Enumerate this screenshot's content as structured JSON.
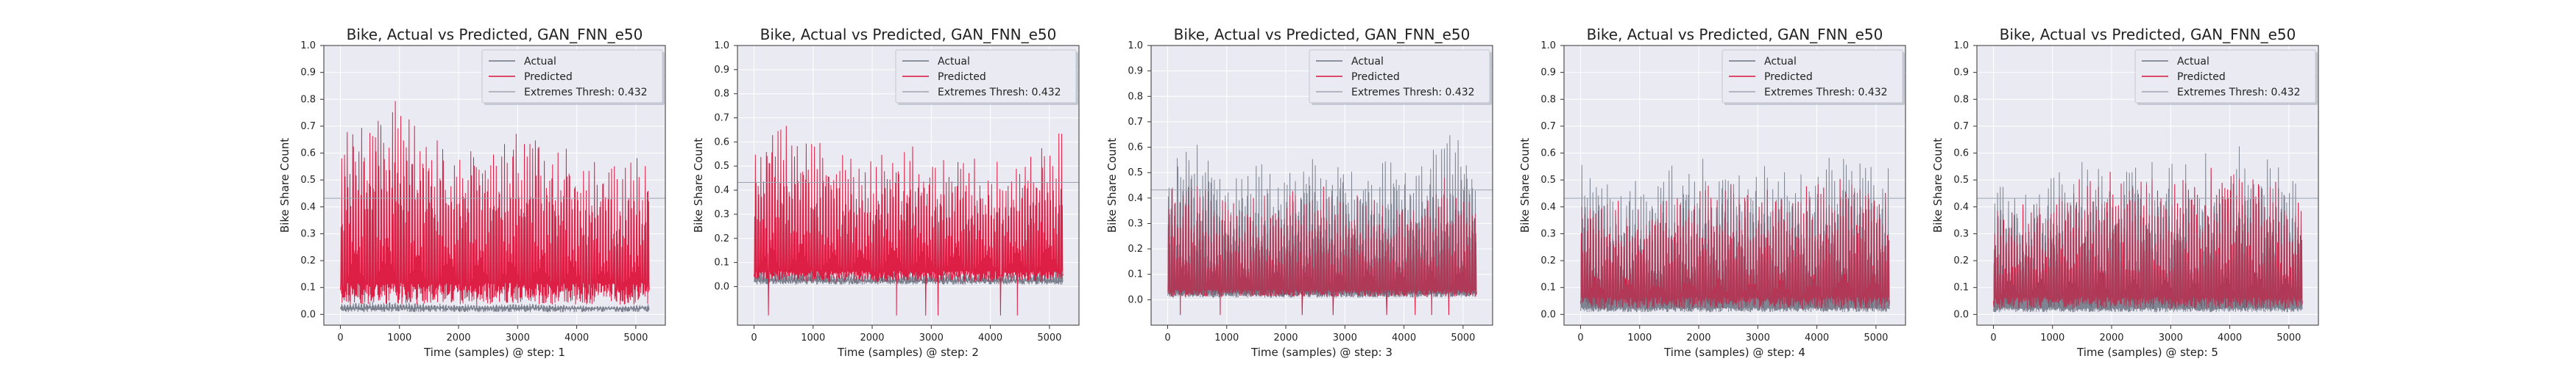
{
  "colors": {
    "background": "#ffffff",
    "axes_face": "#eaeaf2",
    "grid": "#ffffff",
    "actual": "#6b7280",
    "predicted": "#dc143c",
    "threshold": "#9ca3af",
    "text": "#222222"
  },
  "chart_data": [
    {
      "type": "line",
      "title": "Bike, Actual vs Predicted, GAN_FNN_e50",
      "xlabel": "Time (samples) @ step: 1",
      "ylabel": "Bike Share Count",
      "xlim": [
        -280,
        5500
      ],
      "ylim": [
        -0.04,
        1.0
      ],
      "xticks": [
        0,
        1000,
        2000,
        3000,
        4000,
        5000
      ],
      "yticks": [
        0.0,
        0.1,
        0.2,
        0.3,
        0.4,
        0.5,
        0.6,
        0.7,
        0.8,
        0.9,
        1.0
      ],
      "grid": true,
      "legend_position": "top-right",
      "threshold": 0.432,
      "series": [
        {
          "name": "Actual",
          "n_points": 5230,
          "baseline": 0.02,
          "peak_envelope": [
            0.03,
            0.05
          ]
        },
        {
          "name": "Predicted",
          "n_points": 5230,
          "baseline": 0.09,
          "peak_envelope": [
            0.55,
            0.84
          ]
        },
        {
          "name": "Extremes Thresh: 0.432",
          "value": 0.432
        }
      ]
    },
    {
      "type": "line",
      "title": "Bike, Actual vs Predicted, GAN_FNN_e50",
      "xlabel": "Time (samples) @ step: 2",
      "ylabel": "Bike Share Count",
      "xlim": [
        -280,
        5500
      ],
      "ylim": [
        -0.16,
        1.0
      ],
      "xticks": [
        0,
        1000,
        2000,
        3000,
        4000,
        5000
      ],
      "yticks": [
        0.0,
        0.1,
        0.2,
        0.3,
        0.4,
        0.5,
        0.6,
        0.7,
        0.8,
        0.9,
        1.0
      ],
      "grid": true,
      "legend_position": "top-right",
      "threshold": 0.432,
      "series": [
        {
          "name": "Actual",
          "n_points": 5230,
          "baseline": 0.02,
          "peak_envelope": [
            0.05,
            0.08
          ]
        },
        {
          "name": "Predicted",
          "n_points": 5230,
          "baseline": 0.05,
          "peak_envelope": [
            0.5,
            0.68
          ]
        },
        {
          "name": "Extremes Thresh: 0.432",
          "value": 0.432
        }
      ]
    },
    {
      "type": "line",
      "title": "Bike, Actual vs Predicted, GAN_FNN_e50",
      "xlabel": "Time (samples) @ step: 3",
      "ylabel": "Bike Share Count",
      "xlim": [
        -280,
        5500
      ],
      "ylim": [
        -0.1,
        1.0
      ],
      "xticks": [
        0,
        1000,
        2000,
        3000,
        4000,
        5000
      ],
      "yticks": [
        0.0,
        0.1,
        0.2,
        0.3,
        0.4,
        0.5,
        0.6,
        0.7,
        0.8,
        0.9,
        1.0
      ],
      "grid": true,
      "legend_position": "top-right",
      "threshold": 0.432,
      "series": [
        {
          "name": "Actual",
          "n_points": 5230,
          "baseline": 0.02,
          "peak_envelope": [
            0.5,
            0.68
          ]
        },
        {
          "name": "Predicted",
          "n_points": 5230,
          "baseline": 0.03,
          "peak_envelope": [
            0.4,
            0.5
          ]
        },
        {
          "name": "Extremes Thresh: 0.432",
          "value": 0.432
        }
      ]
    },
    {
      "type": "line",
      "title": "Bike, Actual vs Predicted, GAN_FNN_e50",
      "xlabel": "Time (samples) @ step: 4",
      "ylabel": "Bike Share Count",
      "xlim": [
        -280,
        5500
      ],
      "ylim": [
        -0.04,
        1.0
      ],
      "xticks": [
        0,
        1000,
        2000,
        3000,
        4000,
        5000
      ],
      "yticks": [
        0.0,
        0.1,
        0.2,
        0.3,
        0.4,
        0.5,
        0.6,
        0.7,
        0.8,
        0.9,
        1.0
      ],
      "grid": true,
      "legend_position": "top-right",
      "threshold": 0.432,
      "series": [
        {
          "name": "Actual",
          "n_points": 5230,
          "baseline": 0.02,
          "peak_envelope": [
            0.5,
            0.66
          ]
        },
        {
          "name": "Predicted",
          "n_points": 5230,
          "baseline": 0.05,
          "peak_envelope": [
            0.42,
            0.55
          ]
        },
        {
          "name": "Extremes Thresh: 0.432",
          "value": 0.432
        }
      ]
    },
    {
      "type": "line",
      "title": "Bike, Actual vs Predicted, GAN_FNN_e50",
      "xlabel": "Time (samples) @ step: 5",
      "ylabel": "Bike Share Count",
      "xlim": [
        -280,
        5500
      ],
      "ylim": [
        -0.04,
        1.0
      ],
      "xticks": [
        0,
        1000,
        2000,
        3000,
        4000,
        5000
      ],
      "yticks": [
        0.0,
        0.1,
        0.2,
        0.3,
        0.4,
        0.5,
        0.6,
        0.7,
        0.8,
        0.9,
        1.0
      ],
      "grid": true,
      "legend_position": "top-right",
      "threshold": 0.432,
      "series": [
        {
          "name": "Actual",
          "n_points": 5230,
          "baseline": 0.02,
          "peak_envelope": [
            0.5,
            0.65
          ]
        },
        {
          "name": "Predicted",
          "n_points": 5230,
          "baseline": 0.05,
          "peak_envelope": [
            0.42,
            0.6
          ]
        },
        {
          "name": "Extremes Thresh: 0.432",
          "value": 0.432
        }
      ]
    }
  ]
}
